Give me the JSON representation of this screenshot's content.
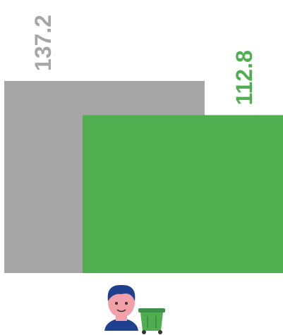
{
  "chart_data": {
    "type": "bar",
    "values": [
      137.2,
      112.8
    ],
    "colors": [
      "#a6a6a6",
      "#4faf50"
    ]
  }
}
